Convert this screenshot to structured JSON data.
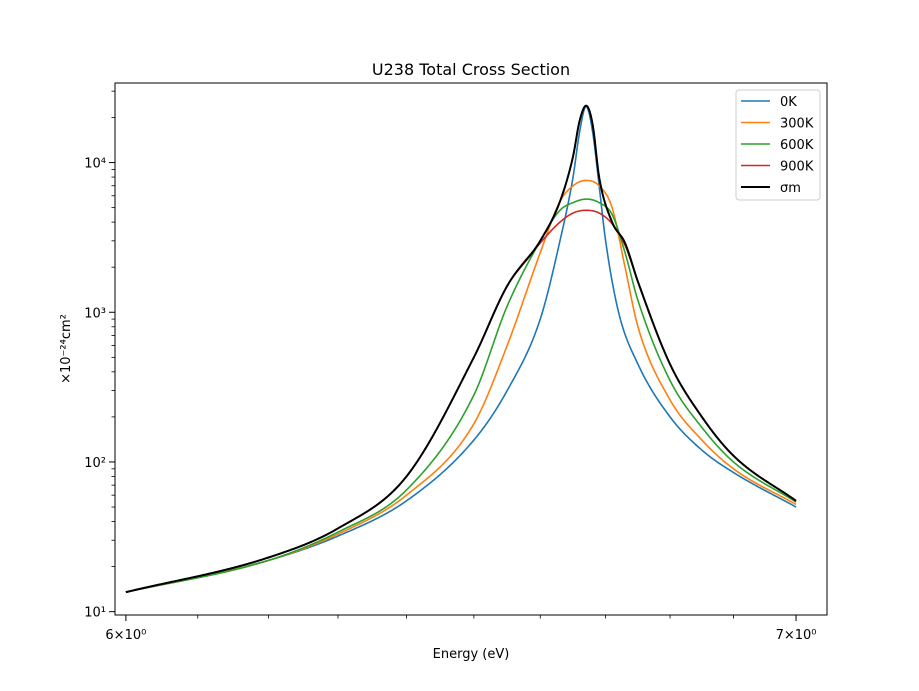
{
  "chart_data": {
    "type": "line",
    "title": "U238 Total Cross Section",
    "xlabel": "Energy (eV)",
    "ylabel": "×10⁻²⁴cm²",
    "xscale": "log",
    "yscale": "log",
    "xlim": [
      5.985,
      7.05
    ],
    "ylim": [
      9.5,
      34000
    ],
    "x_ticks": [
      {
        "value": 6,
        "label": "6×10⁰"
      },
      {
        "value": 7,
        "label": "7×10⁰"
      }
    ],
    "y_ticks": [
      {
        "value": 10,
        "label": "10¹"
      },
      {
        "value": 100,
        "label": "10²"
      },
      {
        "value": 1000,
        "label": "10³"
      },
      {
        "value": 10000,
        "label": "10⁴"
      }
    ],
    "grid": false,
    "legend": {
      "position": "top-right",
      "entries": [
        "0K",
        "300K",
        "600K",
        "900K",
        "σm"
      ]
    },
    "series": [
      {
        "name": "0K",
        "color": "#1f77b4",
        "x": [
          6.0,
          6.2,
          6.3,
          6.4,
          6.5,
          6.55,
          6.6,
          6.63,
          6.65,
          6.66,
          6.67,
          6.68,
          6.69,
          6.7,
          6.72,
          6.75,
          6.8,
          6.85,
          6.9,
          7.0
        ],
        "y": [
          13.5,
          22,
          32,
          55,
          140,
          300,
          900,
          3000,
          8000,
          16000,
          23800,
          16000,
          7000,
          3000,
          1000,
          450,
          200,
          120,
          85,
          50
        ]
      },
      {
        "name": "300K",
        "color": "#ff7f0e",
        "x": [
          6.0,
          6.2,
          6.3,
          6.4,
          6.5,
          6.55,
          6.6,
          6.63,
          6.65,
          6.67,
          6.69,
          6.71,
          6.73,
          6.75,
          6.8,
          6.85,
          6.9,
          7.0
        ],
        "y": [
          13.5,
          22,
          33,
          60,
          180,
          600,
          2500,
          5500,
          7000,
          7600,
          7000,
          5000,
          2000,
          800,
          260,
          140,
          90,
          52
        ]
      },
      {
        "name": "600K",
        "color": "#2ca02c",
        "x": [
          6.0,
          6.2,
          6.3,
          6.4,
          6.5,
          6.55,
          6.6,
          6.63,
          6.65,
          6.67,
          6.69,
          6.71,
          6.73,
          6.75,
          6.8,
          6.85,
          6.9,
          7.0
        ],
        "y": [
          13.5,
          22,
          34,
          65,
          280,
          1100,
          3000,
          4800,
          5400,
          5700,
          5400,
          4500,
          2500,
          1200,
          350,
          170,
          100,
          54
        ]
      },
      {
        "name": "900K",
        "color": "#d62728",
        "x": [
          6.0,
          6.2,
          6.3,
          6.4,
          6.5,
          6.55,
          6.6,
          6.63,
          6.65,
          6.67,
          6.69,
          6.71,
          6.73,
          6.75,
          6.8,
          6.85,
          6.9,
          7.0
        ],
        "y": [
          13.5,
          23,
          36,
          80,
          500,
          1500,
          2900,
          4000,
          4600,
          4800,
          4600,
          3900,
          2800,
          1600,
          450,
          200,
          110,
          55
        ]
      },
      {
        "name": "σm",
        "color": "#000000",
        "x": [
          6.0,
          6.2,
          6.3,
          6.4,
          6.5,
          6.55,
          6.6,
          6.63,
          6.65,
          6.66,
          6.67,
          6.68,
          6.69,
          6.71,
          6.73,
          6.75,
          6.8,
          6.85,
          6.9,
          7.0
        ],
        "y": [
          13.5,
          23,
          36,
          80,
          500,
          1500,
          3000,
          5500,
          11000,
          19000,
          24000,
          18000,
          8000,
          4000,
          2900,
          1600,
          450,
          200,
          110,
          55
        ]
      }
    ]
  }
}
